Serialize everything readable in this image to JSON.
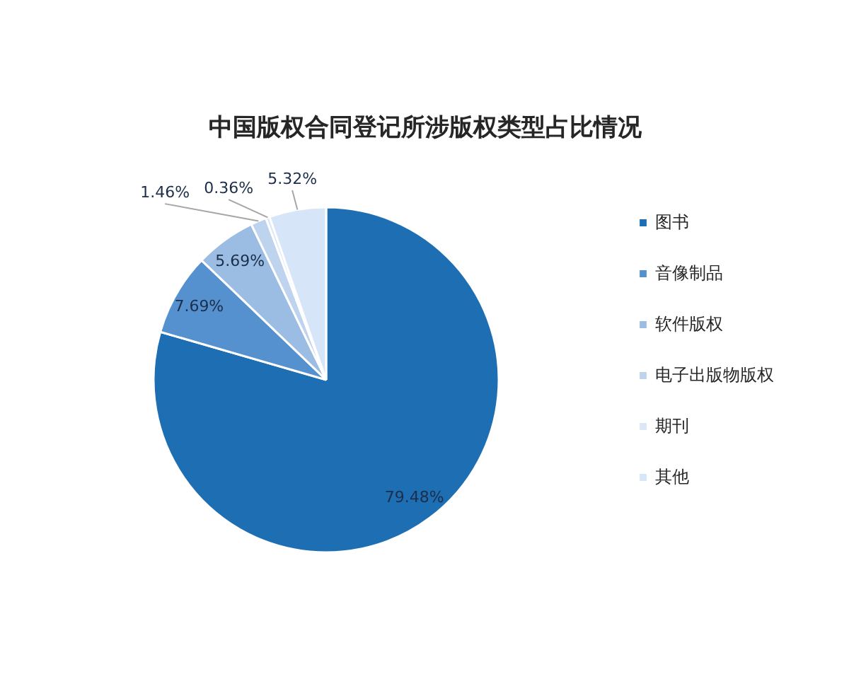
{
  "chart_data": {
    "type": "pie",
    "title": "中国版权合同登记所涉版权类型占比情况",
    "categories": [
      "图书",
      "音像制品",
      "软件版权",
      "电子出版物版权",
      "期刊",
      "其他"
    ],
    "values": [
      79.48,
      7.69,
      5.69,
      1.46,
      0.36,
      5.32
    ],
    "colors": [
      "#1e6eb4",
      "#5591cf",
      "#9bbde3",
      "#bdd3ee",
      "#dbe7f5",
      "#d6e6f8"
    ],
    "value_labels": [
      "79.48%",
      "7.69%",
      "5.69%",
      "1.46%",
      "0.36%",
      "5.32%"
    ],
    "legend": "right"
  }
}
